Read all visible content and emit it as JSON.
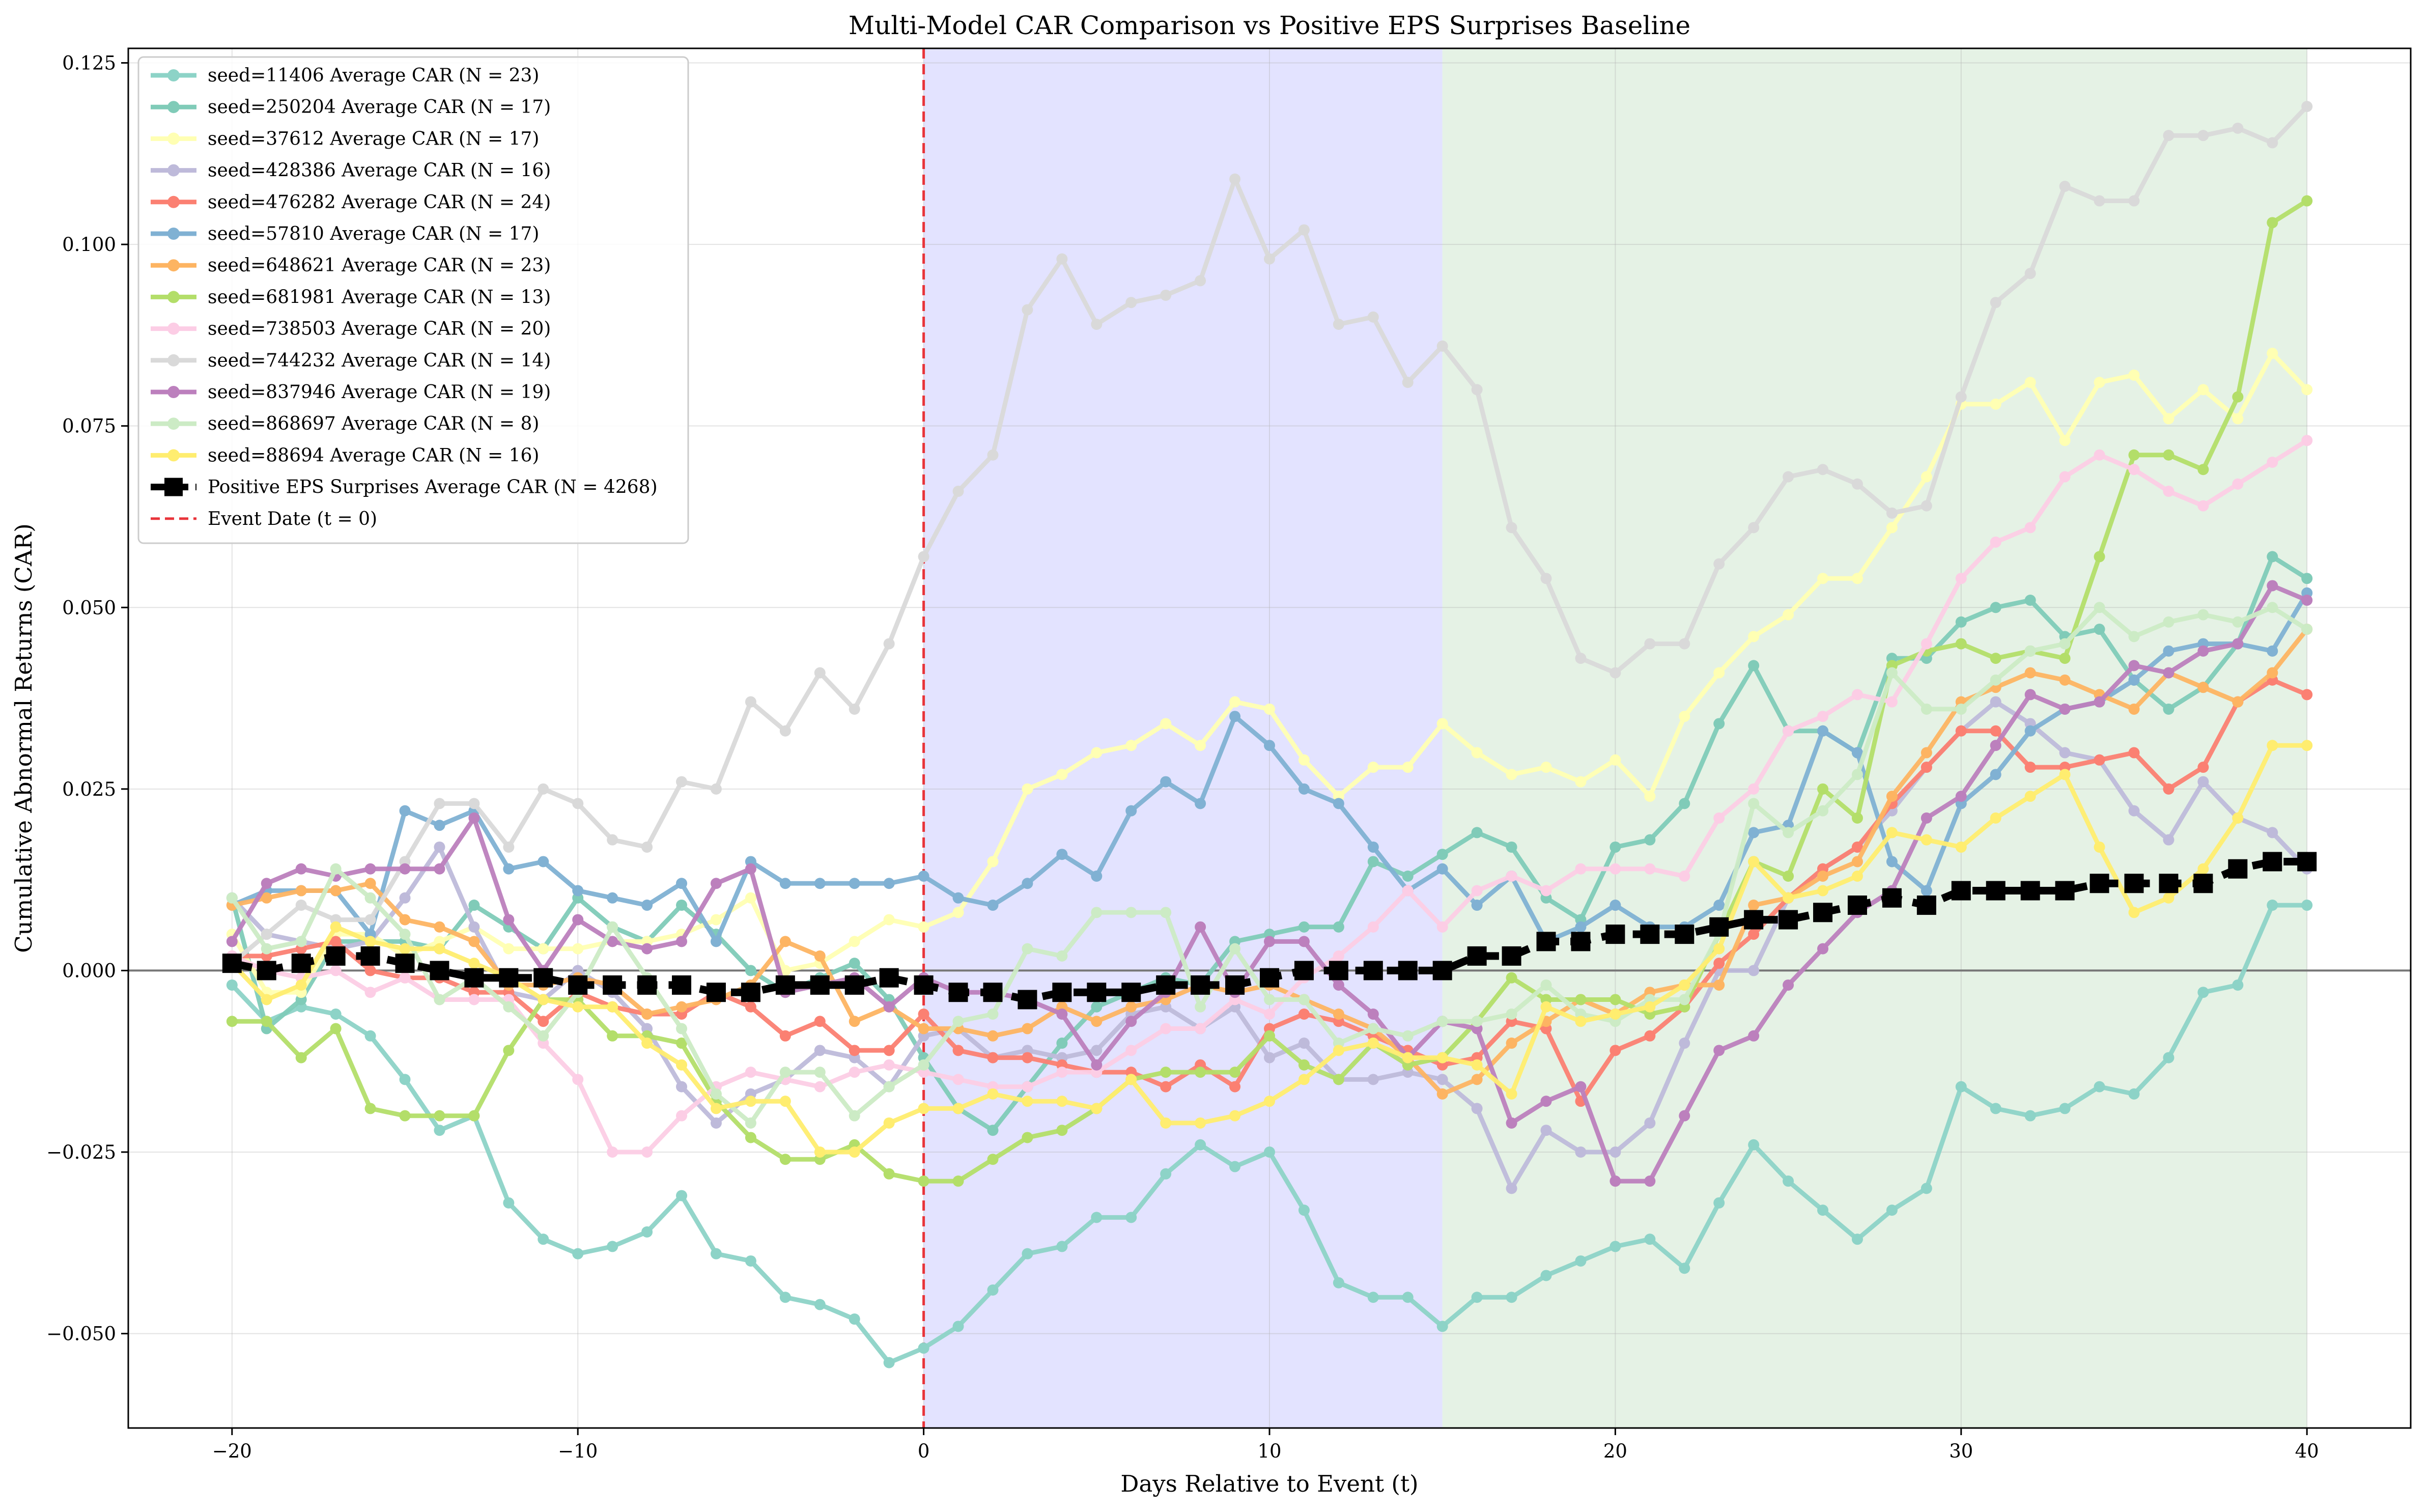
{
  "chart_data": {
    "type": "line",
    "title": "Multi-Model CAR Comparison vs Positive EPS Surprises Baseline",
    "xlabel": "Days Relative to Event (t)",
    "ylabel": "Cumulative Abnormal Returns (CAR)",
    "xlim": [
      -23,
      43
    ],
    "ylim": [
      -0.063,
      0.127
    ],
    "x_ticks": [
      -20,
      -10,
      0,
      10,
      20,
      30,
      40
    ],
    "x_tick_labels": [
      "−20",
      "−10",
      "0",
      "10",
      "20",
      "30",
      "40"
    ],
    "y_ticks": [
      -0.05,
      -0.025,
      0,
      0.025,
      0.05,
      0.075,
      0.1,
      0.125
    ],
    "y_tick_labels": [
      "−0.050",
      "−0.025",
      "0.000",
      "0.025",
      "0.050",
      "0.075",
      "0.100",
      "0.125"
    ],
    "grid": true,
    "legend_position": "top-left",
    "shaded_regions": [
      {
        "x0": 0,
        "x1": 15,
        "color": "#b0b0ff",
        "opacity": 0.35
      },
      {
        "x0": 15,
        "x1": 40,
        "color": "#aed6ae",
        "opacity": 0.32
      }
    ],
    "event_line": {
      "x": 0,
      "color": "#e8343a",
      "label": "Event Date   (t = 0)"
    },
    "zero_line": {
      "y": 0,
      "color": "#777777"
    },
    "x": [
      -20,
      -19,
      -18,
      -17,
      -16,
      -15,
      -14,
      -13,
      -12,
      -11,
      -10,
      -9,
      -8,
      -7,
      -6,
      -5,
      -4,
      -3,
      -2,
      -1,
      0,
      1,
      2,
      3,
      4,
      5,
      6,
      7,
      8,
      9,
      10,
      11,
      12,
      13,
      14,
      15,
      16,
      17,
      18,
      19,
      20,
      21,
      22,
      23,
      24,
      25,
      26,
      27,
      28,
      29,
      30,
      31,
      32,
      33,
      34,
      35,
      36,
      37,
      38,
      39,
      40
    ],
    "series": [
      {
        "name": "seed=11406 Average CAR   (N = 23)",
        "color": "#8dd3c7",
        "values": [
          -0.002,
          -0.007,
          -0.005,
          -0.006,
          -0.009,
          -0.015,
          -0.022,
          -0.02,
          -0.032,
          -0.037,
          -0.039,
          -0.038,
          -0.036,
          -0.031,
          -0.039,
          -0.04,
          -0.045,
          -0.046,
          -0.048,
          -0.054,
          -0.052,
          -0.049,
          -0.044,
          -0.039,
          -0.038,
          -0.034,
          -0.034,
          -0.028,
          -0.024,
          -0.027,
          -0.025,
          -0.033,
          -0.043,
          -0.045,
          -0.045,
          -0.049,
          -0.045,
          -0.045,
          -0.042,
          -0.04,
          -0.038,
          -0.037,
          -0.041,
          -0.032,
          -0.024,
          -0.029,
          -0.033,
          -0.037,
          -0.033,
          -0.03,
          -0.016,
          -0.019,
          -0.02,
          -0.019,
          -0.016,
          -0.017,
          -0.012,
          -0.003,
          -0.002,
          0.009,
          0.009
        ]
      },
      {
        "name": "seed=250204 Average CAR   (N = 17)",
        "color": "#80cbb8",
        "values": [
          0.01,
          -0.008,
          -0.004,
          0.004,
          0.004,
          0.004,
          0.003,
          0.009,
          0.006,
          0.003,
          0.01,
          0.006,
          0.004,
          0.009,
          0.005,
          0.0,
          -0.003,
          -0.001,
          0.001,
          -0.004,
          -0.012,
          -0.019,
          -0.022,
          -0.016,
          -0.01,
          -0.005,
          -0.003,
          -0.001,
          -0.002,
          0.004,
          0.005,
          0.006,
          0.006,
          0.015,
          0.013,
          0.016,
          0.019,
          0.017,
          0.01,
          0.007,
          0.017,
          0.018,
          0.023,
          0.034,
          0.042,
          0.033,
          0.033,
          0.03,
          0.043,
          0.043,
          0.048,
          0.05,
          0.051,
          0.046,
          0.047,
          0.04,
          0.036,
          0.039,
          0.045,
          0.057,
          0.054
        ]
      },
      {
        "name": "seed=37612 Average CAR   (N = 17)",
        "color": "#ffffb3",
        "values": [
          0.005,
          -0.003,
          -0.003,
          0.005,
          0.005,
          0.002,
          0.004,
          0.006,
          0.003,
          0.003,
          0.003,
          0.004,
          0.004,
          0.005,
          0.007,
          0.01,
          0.0,
          0.001,
          0.004,
          0.007,
          0.006,
          0.008,
          0.015,
          0.025,
          0.027,
          0.03,
          0.031,
          0.034,
          0.031,
          0.037,
          0.036,
          0.029,
          0.024,
          0.028,
          0.028,
          0.034,
          0.03,
          0.027,
          0.028,
          0.026,
          0.029,
          0.024,
          0.035,
          0.041,
          0.046,
          0.049,
          0.054,
          0.054,
          0.061,
          0.068,
          0.078,
          0.078,
          0.081,
          0.073,
          0.081,
          0.082,
          0.076,
          0.08,
          0.076,
          0.085,
          0.08
        ]
      },
      {
        "name": "seed=428386 Average CAR   (N = 16)",
        "color": "#bebada",
        "values": [
          0.01,
          0.005,
          0.004,
          0.003,
          0.004,
          0.01,
          0.017,
          0.006,
          -0.003,
          -0.004,
          0.0,
          -0.003,
          -0.008,
          -0.016,
          -0.021,
          -0.017,
          -0.015,
          -0.011,
          -0.012,
          -0.016,
          -0.009,
          -0.008,
          -0.012,
          -0.011,
          -0.012,
          -0.011,
          -0.006,
          -0.005,
          -0.008,
          -0.005,
          -0.012,
          -0.01,
          -0.015,
          -0.015,
          -0.014,
          -0.015,
          -0.019,
          -0.03,
          -0.022,
          -0.025,
          -0.025,
          -0.021,
          -0.01,
          0.0,
          0.0,
          0.01,
          0.014,
          0.017,
          0.022,
          0.028,
          0.033,
          0.037,
          0.034,
          0.03,
          0.029,
          0.022,
          0.018,
          0.026,
          0.021,
          0.019,
          0.014
        ]
      },
      {
        "name": "seed=476282 Average CAR   (N = 24)",
        "color": "#fb8072",
        "values": [
          0.002,
          0.002,
          0.003,
          0.004,
          0.0,
          -0.001,
          -0.001,
          -0.003,
          -0.003,
          -0.007,
          -0.003,
          -0.005,
          -0.006,
          -0.006,
          -0.003,
          -0.005,
          -0.009,
          -0.007,
          -0.011,
          -0.011,
          -0.006,
          -0.011,
          -0.012,
          -0.012,
          -0.013,
          -0.014,
          -0.014,
          -0.016,
          -0.013,
          -0.016,
          -0.008,
          -0.006,
          -0.007,
          -0.009,
          -0.011,
          -0.013,
          -0.012,
          -0.007,
          -0.008,
          -0.018,
          -0.011,
          -0.009,
          -0.005,
          0.001,
          0.005,
          0.01,
          0.014,
          0.017,
          0.023,
          0.028,
          0.033,
          0.033,
          0.028,
          0.028,
          0.029,
          0.03,
          0.025,
          0.028,
          0.037,
          0.04,
          0.038
        ]
      },
      {
        "name": "seed=57810 Average CAR   (N = 17)",
        "color": "#80b1d3",
        "values": [
          0.009,
          0.011,
          0.011,
          0.011,
          0.005,
          0.022,
          0.02,
          0.022,
          0.014,
          0.015,
          0.011,
          0.01,
          0.009,
          0.012,
          0.004,
          0.015,
          0.012,
          0.012,
          0.012,
          0.012,
          0.013,
          0.01,
          0.009,
          0.012,
          0.016,
          0.013,
          0.022,
          0.026,
          0.023,
          0.035,
          0.031,
          0.025,
          0.023,
          0.017,
          0.011,
          0.014,
          0.009,
          0.013,
          0.004,
          0.006,
          0.009,
          0.006,
          0.006,
          0.009,
          0.019,
          0.02,
          0.033,
          0.03,
          0.015,
          0.011,
          0.023,
          0.027,
          0.033,
          0.036,
          0.037,
          0.04,
          0.044,
          0.045,
          0.045,
          0.044,
          0.052
        ]
      },
      {
        "name": "seed=648621 Average CAR   (N = 23)",
        "color": "#fdb462",
        "values": [
          0.009,
          0.01,
          0.011,
          0.011,
          0.012,
          0.007,
          0.006,
          0.004,
          -0.002,
          -0.002,
          -0.001,
          -0.002,
          -0.006,
          -0.005,
          -0.004,
          -0.002,
          0.004,
          0.002,
          -0.007,
          -0.005,
          -0.008,
          -0.008,
          -0.009,
          -0.008,
          -0.005,
          -0.007,
          -0.005,
          -0.004,
          -0.002,
          -0.003,
          -0.002,
          -0.004,
          -0.006,
          -0.008,
          -0.012,
          -0.017,
          -0.015,
          -0.01,
          -0.007,
          -0.004,
          -0.006,
          -0.003,
          -0.002,
          -0.002,
          0.009,
          0.01,
          0.013,
          0.015,
          0.024,
          0.03,
          0.037,
          0.039,
          0.041,
          0.04,
          0.038,
          0.036,
          0.041,
          0.039,
          0.037,
          0.041,
          0.047
        ]
      },
      {
        "name": "seed=681981 Average CAR   (N = 13)",
        "color": "#b3de69",
        "values": [
          -0.007,
          -0.007,
          -0.012,
          -0.008,
          -0.019,
          -0.02,
          -0.02,
          -0.02,
          -0.011,
          -0.004,
          -0.004,
          -0.009,
          -0.009,
          -0.01,
          -0.018,
          -0.023,
          -0.026,
          -0.026,
          -0.024,
          -0.028,
          -0.029,
          -0.029,
          -0.026,
          -0.023,
          -0.022,
          -0.019,
          -0.015,
          -0.014,
          -0.014,
          -0.014,
          -0.009,
          -0.013,
          -0.015,
          -0.01,
          -0.013,
          -0.012,
          -0.007,
          -0.001,
          -0.004,
          -0.004,
          -0.004,
          -0.006,
          -0.005,
          0.005,
          0.015,
          0.013,
          0.025,
          0.021,
          0.042,
          0.044,
          0.045,
          0.043,
          0.044,
          0.043,
          0.057,
          0.071,
          0.071,
          0.069,
          0.079,
          0.103,
          0.106
        ]
      },
      {
        "name": "seed=738503 Average CAR   (N = 20)",
        "color": "#fccde5",
        "values": [
          0.002,
          0.0,
          -0.001,
          0.0,
          -0.003,
          -0.001,
          -0.004,
          -0.004,
          -0.004,
          -0.01,
          -0.015,
          -0.025,
          -0.025,
          -0.02,
          -0.016,
          -0.014,
          -0.015,
          -0.016,
          -0.014,
          -0.013,
          -0.014,
          -0.015,
          -0.016,
          -0.016,
          -0.014,
          -0.014,
          -0.011,
          -0.008,
          -0.008,
          -0.004,
          -0.006,
          -0.001,
          0.002,
          0.006,
          0.011,
          0.006,
          0.011,
          0.013,
          0.011,
          0.014,
          0.014,
          0.014,
          0.013,
          0.021,
          0.025,
          0.033,
          0.035,
          0.038,
          0.037,
          0.045,
          0.054,
          0.059,
          0.061,
          0.068,
          0.071,
          0.069,
          0.066,
          0.064,
          0.067,
          0.07,
          0.073
        ]
      },
      {
        "name": "seed=744232 Average CAR   (N = 14)",
        "color": "#d9d9d9",
        "values": [
          0.001,
          0.005,
          0.009,
          0.007,
          0.007,
          0.015,
          0.023,
          0.023,
          0.017,
          0.025,
          0.023,
          0.018,
          0.017,
          0.026,
          0.025,
          0.037,
          0.033,
          0.041,
          0.036,
          0.045,
          0.057,
          0.066,
          0.071,
          0.091,
          0.098,
          0.089,
          0.092,
          0.093,
          0.095,
          0.109,
          0.098,
          0.102,
          0.089,
          0.09,
          0.081,
          0.086,
          0.08,
          0.061,
          0.054,
          0.043,
          0.041,
          0.045,
          0.045,
          0.056,
          0.061,
          0.068,
          0.069,
          0.067,
          0.063,
          0.064,
          0.079,
          0.092,
          0.096,
          0.108,
          0.106,
          0.106,
          0.115,
          0.115,
          0.116,
          0.114,
          0.119
        ]
      },
      {
        "name": "seed=837946 Average CAR   (N = 19)",
        "color": "#bc80bd",
        "values": [
          0.004,
          0.012,
          0.014,
          0.013,
          0.014,
          0.014,
          0.014,
          0.021,
          0.007,
          0.0,
          0.007,
          0.004,
          0.003,
          0.004,
          0.012,
          0.014,
          -0.003,
          -0.002,
          -0.001,
          -0.005,
          -0.001,
          -0.003,
          -0.003,
          -0.004,
          -0.006,
          -0.013,
          -0.007,
          -0.003,
          0.006,
          -0.003,
          0.004,
          0.004,
          -0.002,
          -0.006,
          -0.012,
          -0.007,
          -0.008,
          -0.021,
          -0.018,
          -0.016,
          -0.029,
          -0.029,
          -0.02,
          -0.011,
          -0.009,
          -0.002,
          0.003,
          0.008,
          0.011,
          0.021,
          0.024,
          0.031,
          0.038,
          0.036,
          0.037,
          0.042,
          0.041,
          0.044,
          0.045,
          0.053,
          0.051
        ]
      },
      {
        "name": "seed=868697 Average CAR   (N = 8)",
        "color": "#ccebc5",
        "values": [
          0.01,
          0.003,
          0.004,
          0.014,
          0.01,
          0.005,
          -0.004,
          -0.001,
          -0.005,
          -0.009,
          -0.003,
          0.006,
          -0.001,
          -0.008,
          -0.017,
          -0.021,
          -0.014,
          -0.014,
          -0.02,
          -0.016,
          -0.013,
          -0.007,
          -0.006,
          0.003,
          0.002,
          0.008,
          0.008,
          0.008,
          -0.005,
          0.003,
          -0.004,
          -0.004,
          -0.01,
          -0.008,
          -0.009,
          -0.007,
          -0.007,
          -0.006,
          -0.002,
          -0.006,
          -0.007,
          -0.004,
          -0.004,
          0.005,
          0.023,
          0.019,
          0.022,
          0.027,
          0.041,
          0.036,
          0.036,
          0.04,
          0.044,
          0.045,
          0.05,
          0.046,
          0.048,
          0.049,
          0.048,
          0.05,
          0.047
        ]
      },
      {
        "name": "seed=88694 Average CAR   (N = 16)",
        "color": "#ffed6f",
        "values": [
          0.001,
          -0.004,
          -0.002,
          0.006,
          0.004,
          0.003,
          0.003,
          0.001,
          -0.001,
          -0.004,
          -0.005,
          -0.005,
          -0.01,
          -0.013,
          -0.019,
          -0.018,
          -0.018,
          -0.025,
          -0.025,
          -0.021,
          -0.019,
          -0.019,
          -0.017,
          -0.018,
          -0.018,
          -0.019,
          -0.015,
          -0.021,
          -0.021,
          -0.02,
          -0.018,
          -0.015,
          -0.011,
          -0.01,
          -0.012,
          -0.012,
          -0.013,
          -0.017,
          -0.005,
          -0.007,
          -0.006,
          -0.005,
          -0.002,
          0.003,
          0.015,
          0.01,
          0.011,
          0.013,
          0.019,
          0.018,
          0.017,
          0.021,
          0.024,
          0.027,
          0.017,
          0.008,
          0.01,
          0.014,
          0.021,
          0.031,
          0.031
        ]
      },
      {
        "name": "Positive EPS Surprises Average CAR   (N = 4268)",
        "color": "#000000",
        "baseline": true,
        "values": [
          0.001,
          0.0,
          0.001,
          0.002,
          0.002,
          0.001,
          0.0,
          -0.001,
          -0.001,
          -0.001,
          -0.002,
          -0.002,
          -0.002,
          -0.002,
          -0.003,
          -0.003,
          -0.002,
          -0.002,
          -0.002,
          -0.001,
          -0.002,
          -0.003,
          -0.003,
          -0.004,
          -0.003,
          -0.003,
          -0.003,
          -0.002,
          -0.002,
          -0.002,
          -0.001,
          0.0,
          0.0,
          0.0,
          0.0,
          0.0,
          0.002,
          0.002,
          0.004,
          0.004,
          0.005,
          0.005,
          0.005,
          0.006,
          0.007,
          0.007,
          0.008,
          0.009,
          0.01,
          0.009,
          0.011,
          0.011,
          0.011,
          0.011,
          0.012,
          0.012,
          0.012,
          0.012,
          0.014,
          0.015,
          0.015
        ]
      }
    ]
  }
}
